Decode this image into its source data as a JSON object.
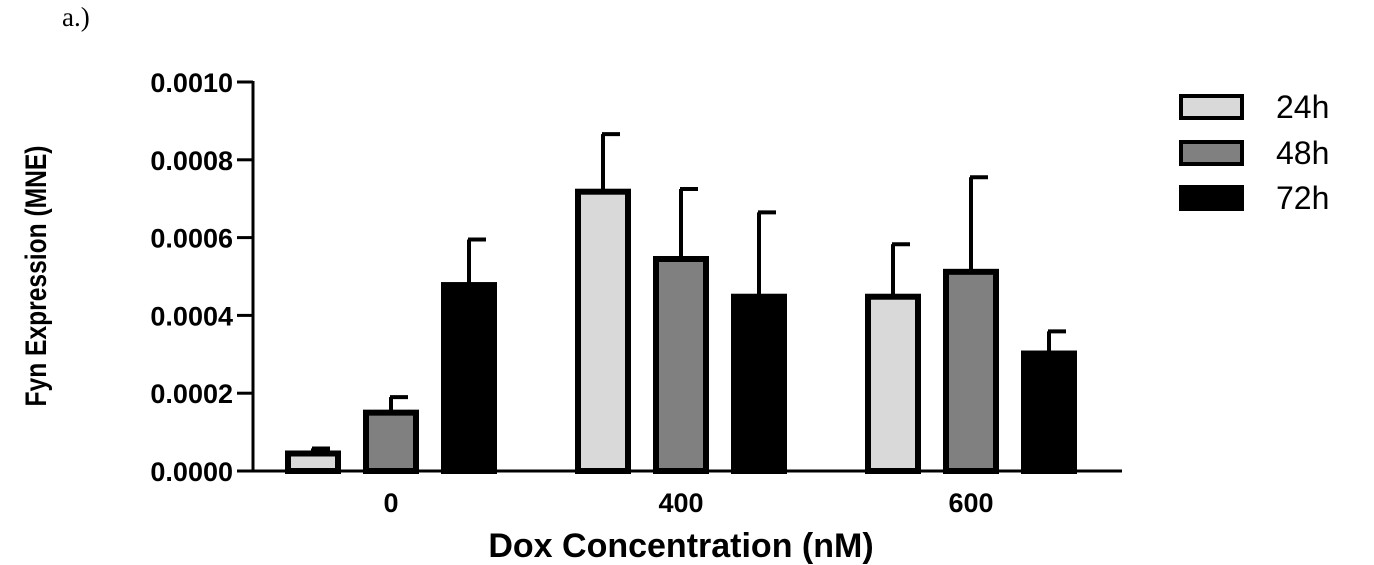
{
  "panel_label": "a.)",
  "colors": {
    "24h": "#d9d9d9",
    "48h": "#808080",
    "72h": "#000000",
    "stroke": "#000000"
  },
  "chart_data": {
    "type": "bar",
    "title": "",
    "xlabel": "Dox Concentration (nM)",
    "ylabel": "Fyn Expression (MNE)",
    "categories": [
      "0",
      "400",
      "600"
    ],
    "ylim": [
      0,
      0.001
    ],
    "yticks": [
      "0.0000",
      "0.0002",
      "0.0004",
      "0.0006",
      "0.0008",
      "0.0010"
    ],
    "legend_position": "top-right",
    "series": [
      {
        "name": "24h",
        "values": [
          4.5e-05,
          0.000718,
          0.000448
        ],
        "error": [
          1.3e-05,
          0.000148,
          0.000135
        ]
      },
      {
        "name": "48h",
        "values": [
          0.00015,
          0.000545,
          0.000512
        ],
        "error": [
          4e-05,
          0.00018,
          0.000243
        ]
      },
      {
        "name": "72h",
        "values": [
          0.000478,
          0.000448,
          0.000302
        ],
        "error": [
          0.000117,
          0.000217,
          5.7e-05
        ]
      }
    ]
  }
}
